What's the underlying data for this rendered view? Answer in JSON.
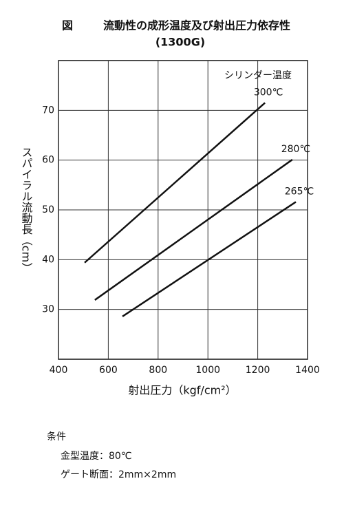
{
  "chart_data": {
    "type": "line",
    "figure_label": "図",
    "title": "流動性の成形温度及び射出圧力依存性",
    "subtitle": "(1300G)",
    "x_label": "射出圧力（kgf/cm²）",
    "y_label": "スパイラル流動長（cm）",
    "legend_title": "シリンダー温度",
    "xlim": [
      400,
      1400
    ],
    "xticks": [
      400,
      600,
      800,
      1000,
      1200,
      1400
    ],
    "ylim": [
      20,
      80
    ],
    "yticks": [
      30,
      40,
      50,
      60,
      70
    ],
    "grid": true,
    "series": [
      {
        "name": "300℃",
        "color": "#111111",
        "x": [
          505,
          1229
        ],
        "values": [
          39.4,
          71.5
        ]
      },
      {
        "name": "280℃",
        "color": "#111111",
        "x": [
          546,
          1339
        ],
        "values": [
          31.9,
          60.1
        ]
      },
      {
        "name": "265℃",
        "color": "#111111",
        "x": [
          657,
          1353
        ],
        "values": [
          28.6,
          51.6
        ]
      }
    ]
  },
  "conditions": {
    "heading": "条件",
    "items": [
      "金型温度：80℃",
      "ゲート断面：2mm×2mm"
    ]
  }
}
